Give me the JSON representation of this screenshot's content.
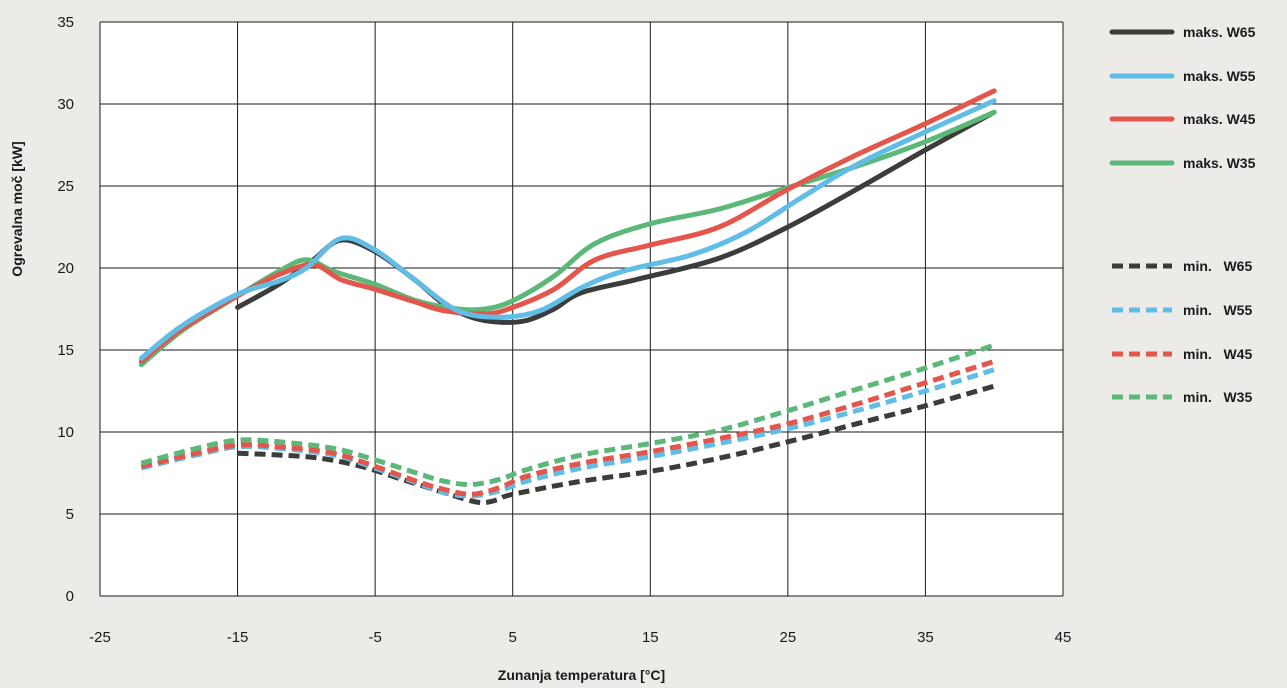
{
  "chart_data": {
    "type": "line",
    "xlabel": "Zunanja temperatura [°C]",
    "ylabel": "Ogrevalna moč [kW]",
    "xlim": [
      -25,
      45
    ],
    "ylim": [
      0,
      35
    ],
    "xticks": [
      -25,
      -15,
      -5,
      5,
      15,
      25,
      35,
      45
    ],
    "yticks": [
      0,
      5,
      10,
      15,
      20,
      25,
      30,
      35
    ],
    "grid": true,
    "legend_position": "right",
    "series": [
      {
        "name": "maks. W65",
        "color": "#3c3c3b",
        "dashed": false,
        "points": [
          [
            -15,
            17.6
          ],
          [
            -12,
            19
          ],
          [
            -9.5,
            20.5
          ],
          [
            -7.5,
            21.7
          ],
          [
            -5,
            21
          ],
          [
            -2,
            19.2
          ],
          [
            0,
            17.8
          ],
          [
            2,
            17
          ],
          [
            4,
            16.7
          ],
          [
            6,
            16.8
          ],
          [
            8,
            17.5
          ],
          [
            10,
            18.5
          ],
          [
            14,
            19.3
          ],
          [
            20,
            20.6
          ],
          [
            25,
            22.5
          ],
          [
            30,
            24.8
          ],
          [
            35,
            27.2
          ],
          [
            40,
            29.5
          ]
        ]
      },
      {
        "name": "maks. W55",
        "color": "#62bde6",
        "dashed": false,
        "points": [
          [
            -22,
            14.5
          ],
          [
            -19,
            16.5
          ],
          [
            -15,
            18.4
          ],
          [
            -12,
            19.2
          ],
          [
            -10,
            20
          ],
          [
            -7.5,
            21.8
          ],
          [
            -5,
            21.1
          ],
          [
            -2,
            19.2
          ],
          [
            1,
            17.4
          ],
          [
            4,
            17
          ],
          [
            7,
            17.4
          ],
          [
            10,
            18.8
          ],
          [
            13,
            19.8
          ],
          [
            18,
            20.8
          ],
          [
            22,
            22.2
          ],
          [
            26,
            24.3
          ],
          [
            30,
            26.3
          ],
          [
            35,
            28.3
          ],
          [
            40,
            30.2
          ]
        ]
      },
      {
        "name": "maks. W45",
        "color": "#e4564b",
        "dashed": false,
        "points": [
          [
            -22,
            14.3
          ],
          [
            -19,
            16.3
          ],
          [
            -15,
            18.3
          ],
          [
            -12,
            19.6
          ],
          [
            -9.5,
            20.2
          ],
          [
            -7.5,
            19.3
          ],
          [
            -5,
            18.7
          ],
          [
            -2,
            17.9
          ],
          [
            0,
            17.4
          ],
          [
            3,
            17.2
          ],
          [
            5,
            17.6
          ],
          [
            8,
            18.7
          ],
          [
            11,
            20.5
          ],
          [
            15,
            21.4
          ],
          [
            20,
            22.5
          ],
          [
            25,
            24.8
          ],
          [
            30,
            26.9
          ],
          [
            35,
            28.8
          ],
          [
            40,
            30.8
          ]
        ]
      },
      {
        "name": "maks. W35",
        "color": "#5cb878",
        "dashed": false,
        "points": [
          [
            -22,
            14.1
          ],
          [
            -19,
            16.2
          ],
          [
            -15,
            18.3
          ],
          [
            -12,
            19.8
          ],
          [
            -10,
            20.5
          ],
          [
            -8,
            19.8
          ],
          [
            -5,
            19
          ],
          [
            -2,
            18
          ],
          [
            1,
            17.5
          ],
          [
            3,
            17.5
          ],
          [
            5,
            18
          ],
          [
            8,
            19.5
          ],
          [
            11,
            21.5
          ],
          [
            15,
            22.7
          ],
          [
            20,
            23.6
          ],
          [
            25,
            24.9
          ],
          [
            30,
            26.2
          ],
          [
            35,
            27.7
          ],
          [
            40,
            29.5
          ]
        ]
      },
      {
        "name": "min.   W65",
        "color": "#3c3c3b",
        "dashed": true,
        "points": [
          [
            -15,
            8.7
          ],
          [
            -12,
            8.6
          ],
          [
            -9,
            8.4
          ],
          [
            -6,
            7.9
          ],
          [
            -3,
            7.1
          ],
          [
            0,
            6.3
          ],
          [
            2,
            5.8
          ],
          [
            3,
            5.7
          ],
          [
            4,
            5.9
          ],
          [
            5,
            6.2
          ],
          [
            10,
            7
          ],
          [
            15,
            7.6
          ],
          [
            20,
            8.4
          ],
          [
            25,
            9.4
          ],
          [
            30,
            10.5
          ],
          [
            35,
            11.6
          ],
          [
            40,
            12.8
          ]
        ]
      },
      {
        "name": "min.   W55",
        "color": "#62bde6",
        "dashed": true,
        "points": [
          [
            -22,
            7.8
          ],
          [
            -18,
            8.6
          ],
          [
            -15,
            9.1
          ],
          [
            -12,
            9
          ],
          [
            -8,
            8.6
          ],
          [
            -5,
            7.8
          ],
          [
            -2,
            6.9
          ],
          [
            0,
            6.3
          ],
          [
            2,
            6.1
          ],
          [
            4,
            6.4
          ],
          [
            6,
            7
          ],
          [
            10,
            7.8
          ],
          [
            15,
            8.5
          ],
          [
            20,
            9.3
          ],
          [
            25,
            10.2
          ],
          [
            30,
            11.3
          ],
          [
            35,
            12.5
          ],
          [
            40,
            13.8
          ]
        ]
      },
      {
        "name": "min.   W45",
        "color": "#e4564b",
        "dashed": true,
        "points": [
          [
            -22,
            7.9
          ],
          [
            -18,
            8.7
          ],
          [
            -15,
            9.2
          ],
          [
            -12,
            9.1
          ],
          [
            -8,
            8.7
          ],
          [
            -5,
            7.9
          ],
          [
            -2,
            7
          ],
          [
            0,
            6.5
          ],
          [
            2,
            6.2
          ],
          [
            4,
            6.6
          ],
          [
            6,
            7.3
          ],
          [
            10,
            8.1
          ],
          [
            15,
            8.8
          ],
          [
            20,
            9.6
          ],
          [
            25,
            10.5
          ],
          [
            30,
            11.7
          ],
          [
            35,
            13
          ],
          [
            40,
            14.3
          ]
        ]
      },
      {
        "name": "min.   W35",
        "color": "#5cb878",
        "dashed": true,
        "points": [
          [
            -22,
            8.1
          ],
          [
            -18,
            9
          ],
          [
            -15,
            9.5
          ],
          [
            -12,
            9.4
          ],
          [
            -8,
            9
          ],
          [
            -5,
            8.3
          ],
          [
            -2,
            7.5
          ],
          [
            0,
            7
          ],
          [
            2,
            6.8
          ],
          [
            4,
            7.1
          ],
          [
            6,
            7.7
          ],
          [
            10,
            8.6
          ],
          [
            15,
            9.3
          ],
          [
            20,
            10.1
          ],
          [
            25,
            11.3
          ],
          [
            30,
            12.6
          ],
          [
            35,
            13.9
          ],
          [
            40,
            15.3
          ]
        ]
      }
    ]
  }
}
